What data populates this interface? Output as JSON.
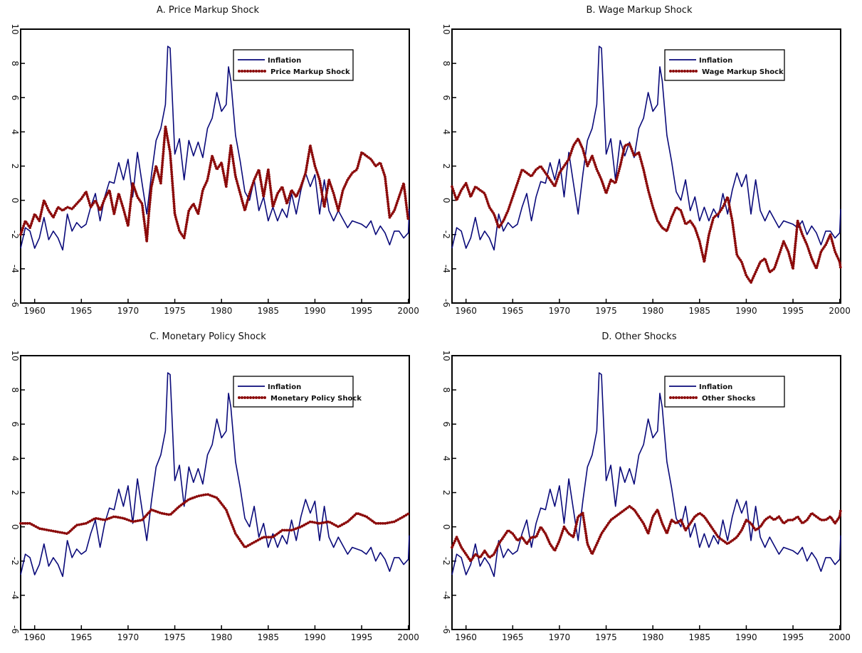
{
  "colors": {
    "inflation": "#0a0a7a",
    "shock": "#8b0a0a"
  },
  "chart_data": [
    {
      "type": "line",
      "title": "A. Price Markup Shock",
      "xlim": [
        1958.5,
        2000.1
      ],
      "ylim": [
        -6,
        10
      ],
      "x_ticks": [
        1960,
        1965,
        1970,
        1975,
        1980,
        1985,
        1990,
        1995,
        2000
      ],
      "y_ticks": [
        -6,
        -4,
        -2,
        0,
        2,
        4,
        6,
        8,
        10
      ],
      "legend": [
        "Inflation",
        "Price Markup Shock"
      ],
      "legend_position": "top-right",
      "series": [
        {
          "name": "Inflation",
          "style": "solid",
          "x": [
            1958.5,
            1959,
            1959.5,
            1960,
            1960.5,
            1961,
            1961.5,
            1962,
            1962.5,
            1963,
            1963.5,
            1964,
            1964.5,
            1965,
            1965.5,
            1966,
            1966.5,
            1967,
            1967.5,
            1968,
            1968.5,
            1969,
            1969.5,
            1970,
            1970.5,
            1971,
            1971.5,
            1972,
            1972.5,
            1973,
            1973.5,
            1974,
            1974.25,
            1974.5,
            1975,
            1975.5,
            1976,
            1976.5,
            1977,
            1977.5,
            1978,
            1978.5,
            1979,
            1979.5,
            1980,
            1980.5,
            1980.75,
            1981,
            1981.5,
            1982,
            1982.5,
            1983,
            1983.5,
            1984,
            1984.5,
            1985,
            1985.5,
            1986,
            1986.5,
            1987,
            1987.5,
            1988,
            1988.5,
            1989,
            1989.5,
            1990,
            1990.5,
            1991,
            1991.5,
            1992,
            1992.5,
            1993,
            1993.5,
            1994,
            1994.5,
            1995,
            1995.5,
            1996,
            1996.5,
            1997,
            1997.5,
            1998,
            1998.5,
            1999,
            1999.5,
            2000,
            2000.1
          ],
          "y": [
            -2.8,
            -1.6,
            -1.8,
            -2.8,
            -2.2,
            -1.0,
            -2.3,
            -1.8,
            -2.2,
            -2.9,
            -0.8,
            -1.8,
            -1.3,
            -1.6,
            -1.4,
            -0.4,
            0.4,
            -1.2,
            0.2,
            1.1,
            1.0,
            2.2,
            1.2,
            2.4,
            0.2,
            2.8,
            1.0,
            -0.8,
            1.5,
            3.5,
            4.2,
            5.6,
            9.0,
            8.9,
            2.7,
            3.6,
            1.2,
            3.5,
            2.6,
            3.4,
            2.5,
            4.2,
            4.8,
            6.3,
            5.2,
            5.6,
            7.8,
            7.0,
            3.8,
            2.3,
            0.5,
            0.0,
            1.2,
            -0.6,
            0.2,
            -1.2,
            -0.4,
            -1.2,
            -0.5,
            -1.0,
            0.4,
            -0.8,
            0.6,
            1.6,
            0.8,
            1.5,
            -0.8,
            1.2,
            -0.6,
            -1.2,
            -0.6,
            -1.1,
            -1.6,
            -1.2,
            -1.3,
            -1.4,
            -1.6,
            -1.2,
            -2.0,
            -1.5,
            -1.9,
            -2.6,
            -1.8,
            -1.8,
            -2.2,
            -1.9,
            -0.5
          ]
        },
        {
          "name": "Price Markup Shock",
          "style": "dotted",
          "x": [
            1958.5,
            1959,
            1959.5,
            1960,
            1960.5,
            1961,
            1961.5,
            1962,
            1962.5,
            1963,
            1963.5,
            1964,
            1964.5,
            1965,
            1965.5,
            1966,
            1966.5,
            1967,
            1967.5,
            1968,
            1968.5,
            1969,
            1969.5,
            1970,
            1970.5,
            1971,
            1971.5,
            1972,
            1972.25,
            1972.5,
            1973,
            1973.5,
            1974,
            1974.5,
            1975,
            1975.5,
            1976,
            1976.5,
            1977,
            1977.5,
            1978,
            1978.5,
            1979,
            1979.5,
            1980,
            1980.5,
            1981,
            1981.5,
            1982,
            1982.5,
            1983,
            1983.5,
            1984,
            1984.5,
            1985,
            1985.5,
            1986,
            1986.5,
            1987,
            1987.5,
            1988,
            1988.5,
            1989,
            1989.5,
            1990,
            1990.5,
            1991,
            1991.5,
            1992,
            1992.5,
            1993,
            1993.5,
            1994,
            1994.5,
            1995,
            1995.5,
            1996,
            1996.5,
            1997,
            1997.5,
            1998,
            1998.5,
            1999,
            1999.5,
            2000
          ],
          "y": [
            -2.0,
            -1.2,
            -1.6,
            -0.8,
            -1.2,
            0.0,
            -0.6,
            -1.0,
            -0.4,
            -0.6,
            -0.4,
            -0.5,
            -0.2,
            0.1,
            0.5,
            -0.4,
            0.0,
            -0.6,
            0.1,
            0.6,
            -0.8,
            0.4,
            -0.5,
            -1.5,
            1.0,
            0.2,
            -0.2,
            -2.4,
            -0.6,
            0.8,
            2.0,
            1.0,
            4.3,
            2.8,
            -0.8,
            -1.8,
            -2.2,
            -0.6,
            -0.2,
            -0.8,
            0.6,
            1.2,
            2.6,
            1.8,
            2.2,
            0.8,
            3.2,
            1.4,
            0.4,
            -0.6,
            0.4,
            1.2,
            1.8,
            0.2,
            1.8,
            -0.4,
            0.4,
            0.8,
            -0.2,
            0.6,
            0.2,
            0.8,
            1.6,
            3.2,
            2.0,
            1.2,
            -0.4,
            1.2,
            0.4,
            -0.6,
            0.6,
            1.2,
            1.6,
            1.8,
            2.8,
            2.6,
            2.4,
            2.0,
            2.2,
            1.4,
            -1.0,
            -0.6,
            0.2,
            1.0,
            -1.2
          ]
        }
      ]
    },
    {
      "type": "line",
      "title": "B. Wage Markup Shock",
      "xlim": [
        1958.5,
        2000.1
      ],
      "ylim": [
        -6,
        10
      ],
      "x_ticks": [
        1960,
        1965,
        1970,
        1975,
        1980,
        1985,
        1990,
        1995,
        2000
      ],
      "y_ticks": [
        -6,
        -4,
        -2,
        0,
        2,
        4,
        6,
        8,
        10
      ],
      "legend": [
        "Inflation",
        "Wage Markup Shock"
      ],
      "legend_position": "top-right",
      "series": [
        {
          "name": "Inflation",
          "style": "solid",
          "same_as": "A.Inflation"
        },
        {
          "name": "Wage Markup Shock",
          "style": "dotted",
          "x": [
            1958.5,
            1959,
            1959.5,
            1960,
            1960.5,
            1961,
            1961.5,
            1962,
            1962.5,
            1963,
            1963.5,
            1964,
            1964.5,
            1965,
            1965.5,
            1966,
            1966.5,
            1967,
            1967.5,
            1968,
            1968.5,
            1969,
            1969.5,
            1970,
            1970.5,
            1971,
            1971.5,
            1972,
            1972.5,
            1973,
            1973.5,
            1974,
            1974.5,
            1975,
            1975.5,
            1976,
            1976.5,
            1977,
            1977.5,
            1978,
            1978.5,
            1979,
            1979.5,
            1980,
            1980.5,
            1981,
            1981.5,
            1982,
            1982.5,
            1983,
            1983.5,
            1984,
            1984.5,
            1985,
            1985.5,
            1986,
            1986.5,
            1987,
            1987.5,
            1988,
            1988.5,
            1989,
            1989.5,
            1990,
            1990.5,
            1991,
            1991.5,
            1992,
            1992.5,
            1993,
            1993.5,
            1994,
            1994.5,
            1995,
            1995.5,
            1996,
            1996.5,
            1997,
            1997.5,
            1998,
            1998.5,
            1999,
            1999.5,
            2000,
            2000.1
          ],
          "y": [
            0.8,
            0.0,
            0.6,
            1.0,
            0.2,
            0.8,
            0.6,
            0.4,
            -0.4,
            -0.8,
            -1.6,
            -1.2,
            -0.6,
            0.2,
            1.0,
            1.8,
            1.6,
            1.4,
            1.8,
            2.0,
            1.6,
            1.2,
            0.8,
            1.6,
            2.0,
            2.4,
            3.2,
            3.6,
            3.0,
            2.0,
            2.6,
            1.8,
            1.2,
            0.4,
            1.2,
            1.0,
            2.0,
            3.2,
            3.3,
            2.6,
            2.8,
            1.8,
            0.6,
            -0.4,
            -1.2,
            -1.6,
            -1.8,
            -1.0,
            -0.4,
            -0.6,
            -1.4,
            -1.2,
            -1.6,
            -2.4,
            -3.6,
            -2.0,
            -1.0,
            -0.8,
            -0.4,
            0.2,
            -1.2,
            -3.2,
            -3.6,
            -4.4,
            -4.8,
            -4.2,
            -3.6,
            -3.4,
            -4.2,
            -4.0,
            -3.2,
            -2.4,
            -3.0,
            -4.0,
            -1.2,
            -2.0,
            -2.6,
            -3.4,
            -4.0,
            -3.0,
            -2.6,
            -2.0,
            -3.0,
            -3.6,
            -4.0
          ]
        }
      ]
    },
    {
      "type": "line",
      "title": "C. Monetary Policy Shock",
      "xlim": [
        1958.5,
        2000.1
      ],
      "ylim": [
        -6,
        10
      ],
      "x_ticks": [
        1960,
        1965,
        1970,
        1975,
        1980,
        1985,
        1990,
        1995,
        2000
      ],
      "y_ticks": [
        -6,
        -4,
        -2,
        0,
        2,
        4,
        6,
        8,
        10
      ],
      "legend": [
        "Inflation",
        "Monetary Policy Shock"
      ],
      "legend_position": "top-right",
      "series": [
        {
          "name": "Inflation",
          "style": "solid",
          "same_as": "A.Inflation"
        },
        {
          "name": "Monetary Policy Shock",
          "style": "dotted",
          "x": [
            1958.5,
            1959.5,
            1960.5,
            1961.5,
            1962.5,
            1963.5,
            1964.5,
            1965.5,
            1966.5,
            1967.5,
            1968.5,
            1969.5,
            1970.5,
            1971.5,
            1972.5,
            1973.5,
            1974.5,
            1975.5,
            1976.5,
            1977.5,
            1978.5,
            1979.5,
            1980.5,
            1981.5,
            1982.5,
            1983.5,
            1984.5,
            1985.5,
            1986.5,
            1987.5,
            1988.5,
            1989.5,
            1990.5,
            1991.5,
            1992.5,
            1993.5,
            1994.5,
            1995.5,
            1996.5,
            1997.5,
            1998.5,
            1999.5,
            2000.1
          ],
          "y": [
            0.2,
            0.2,
            -0.1,
            -0.2,
            -0.3,
            -0.4,
            0.1,
            0.2,
            0.5,
            0.4,
            0.6,
            0.5,
            0.3,
            0.4,
            1.0,
            0.8,
            0.7,
            1.2,
            1.6,
            1.8,
            1.9,
            1.7,
            1.0,
            -0.4,
            -1.2,
            -0.9,
            -0.6,
            -0.6,
            -0.2,
            -0.2,
            0.0,
            0.3,
            0.2,
            0.3,
            0.0,
            0.3,
            0.8,
            0.6,
            0.2,
            0.2,
            0.3,
            0.6,
            0.8
          ]
        }
      ]
    },
    {
      "type": "line",
      "title": "D. Other Shocks",
      "xlim": [
        1958.5,
        2000.1
      ],
      "ylim": [
        -6,
        10
      ],
      "x_ticks": [
        1960,
        1965,
        1970,
        1975,
        1980,
        1985,
        1990,
        1995,
        2000
      ],
      "y_ticks": [
        -6,
        -4,
        -2,
        0,
        2,
        4,
        6,
        8,
        10
      ],
      "legend": [
        "Inflation",
        "Other Shocks"
      ],
      "legend_position": "top-right",
      "series": [
        {
          "name": "Inflation",
          "style": "solid",
          "same_as": "A.Inflation"
        },
        {
          "name": "Other Shocks",
          "style": "dotted",
          "x": [
            1958.5,
            1959,
            1959.5,
            1960,
            1960.5,
            1961,
            1961.5,
            1962,
            1962.5,
            1963,
            1963.5,
            1964,
            1964.5,
            1965,
            1965.5,
            1966,
            1966.5,
            1967,
            1967.5,
            1968,
            1968.5,
            1969,
            1969.5,
            1970,
            1970.5,
            1971,
            1971.5,
            1972,
            1972.5,
            1973,
            1973.5,
            1974,
            1974.5,
            1975,
            1975.5,
            1976,
            1976.5,
            1977,
            1977.5,
            1978,
            1978.5,
            1979,
            1979.5,
            1980,
            1980.5,
            1981,
            1981.5,
            1982,
            1982.5,
            1983,
            1983.5,
            1984,
            1984.5,
            1985,
            1985.5,
            1986,
            1986.5,
            1987,
            1987.5,
            1988,
            1988.5,
            1989,
            1989.5,
            1990,
            1990.5,
            1991,
            1991.5,
            1992,
            1992.5,
            1993,
            1993.5,
            1994,
            1994.5,
            1995,
            1995.5,
            1996,
            1996.5,
            1997,
            1997.5,
            1998,
            1998.5,
            1999,
            1999.5,
            2000,
            2000.1
          ],
          "y": [
            -1.2,
            -0.6,
            -1.2,
            -1.6,
            -2.0,
            -1.6,
            -1.8,
            -1.4,
            -1.8,
            -1.6,
            -1.0,
            -0.6,
            -0.2,
            -0.4,
            -0.8,
            -0.6,
            -1.0,
            -0.6,
            -0.6,
            0.0,
            -0.4,
            -1.0,
            -1.4,
            -0.8,
            0.0,
            -0.4,
            -0.6,
            0.6,
            0.8,
            -1.0,
            -1.6,
            -1.0,
            -0.4,
            0.0,
            0.4,
            0.6,
            0.8,
            1.0,
            1.2,
            1.0,
            0.6,
            0.2,
            -0.4,
            0.6,
            1.0,
            0.2,
            -0.4,
            0.4,
            0.2,
            0.4,
            -0.2,
            0.2,
            0.6,
            0.8,
            0.6,
            0.2,
            -0.2,
            -0.6,
            -0.8,
            -1.0,
            -0.8,
            -0.6,
            -0.2,
            0.4,
            0.2,
            -0.2,
            0.0,
            0.4,
            0.6,
            0.4,
            0.6,
            0.2,
            0.4,
            0.4,
            0.6,
            0.2,
            0.4,
            0.8,
            0.6,
            0.4,
            0.4,
            0.6,
            0.2,
            0.6,
            1.0
          ]
        }
      ]
    }
  ]
}
